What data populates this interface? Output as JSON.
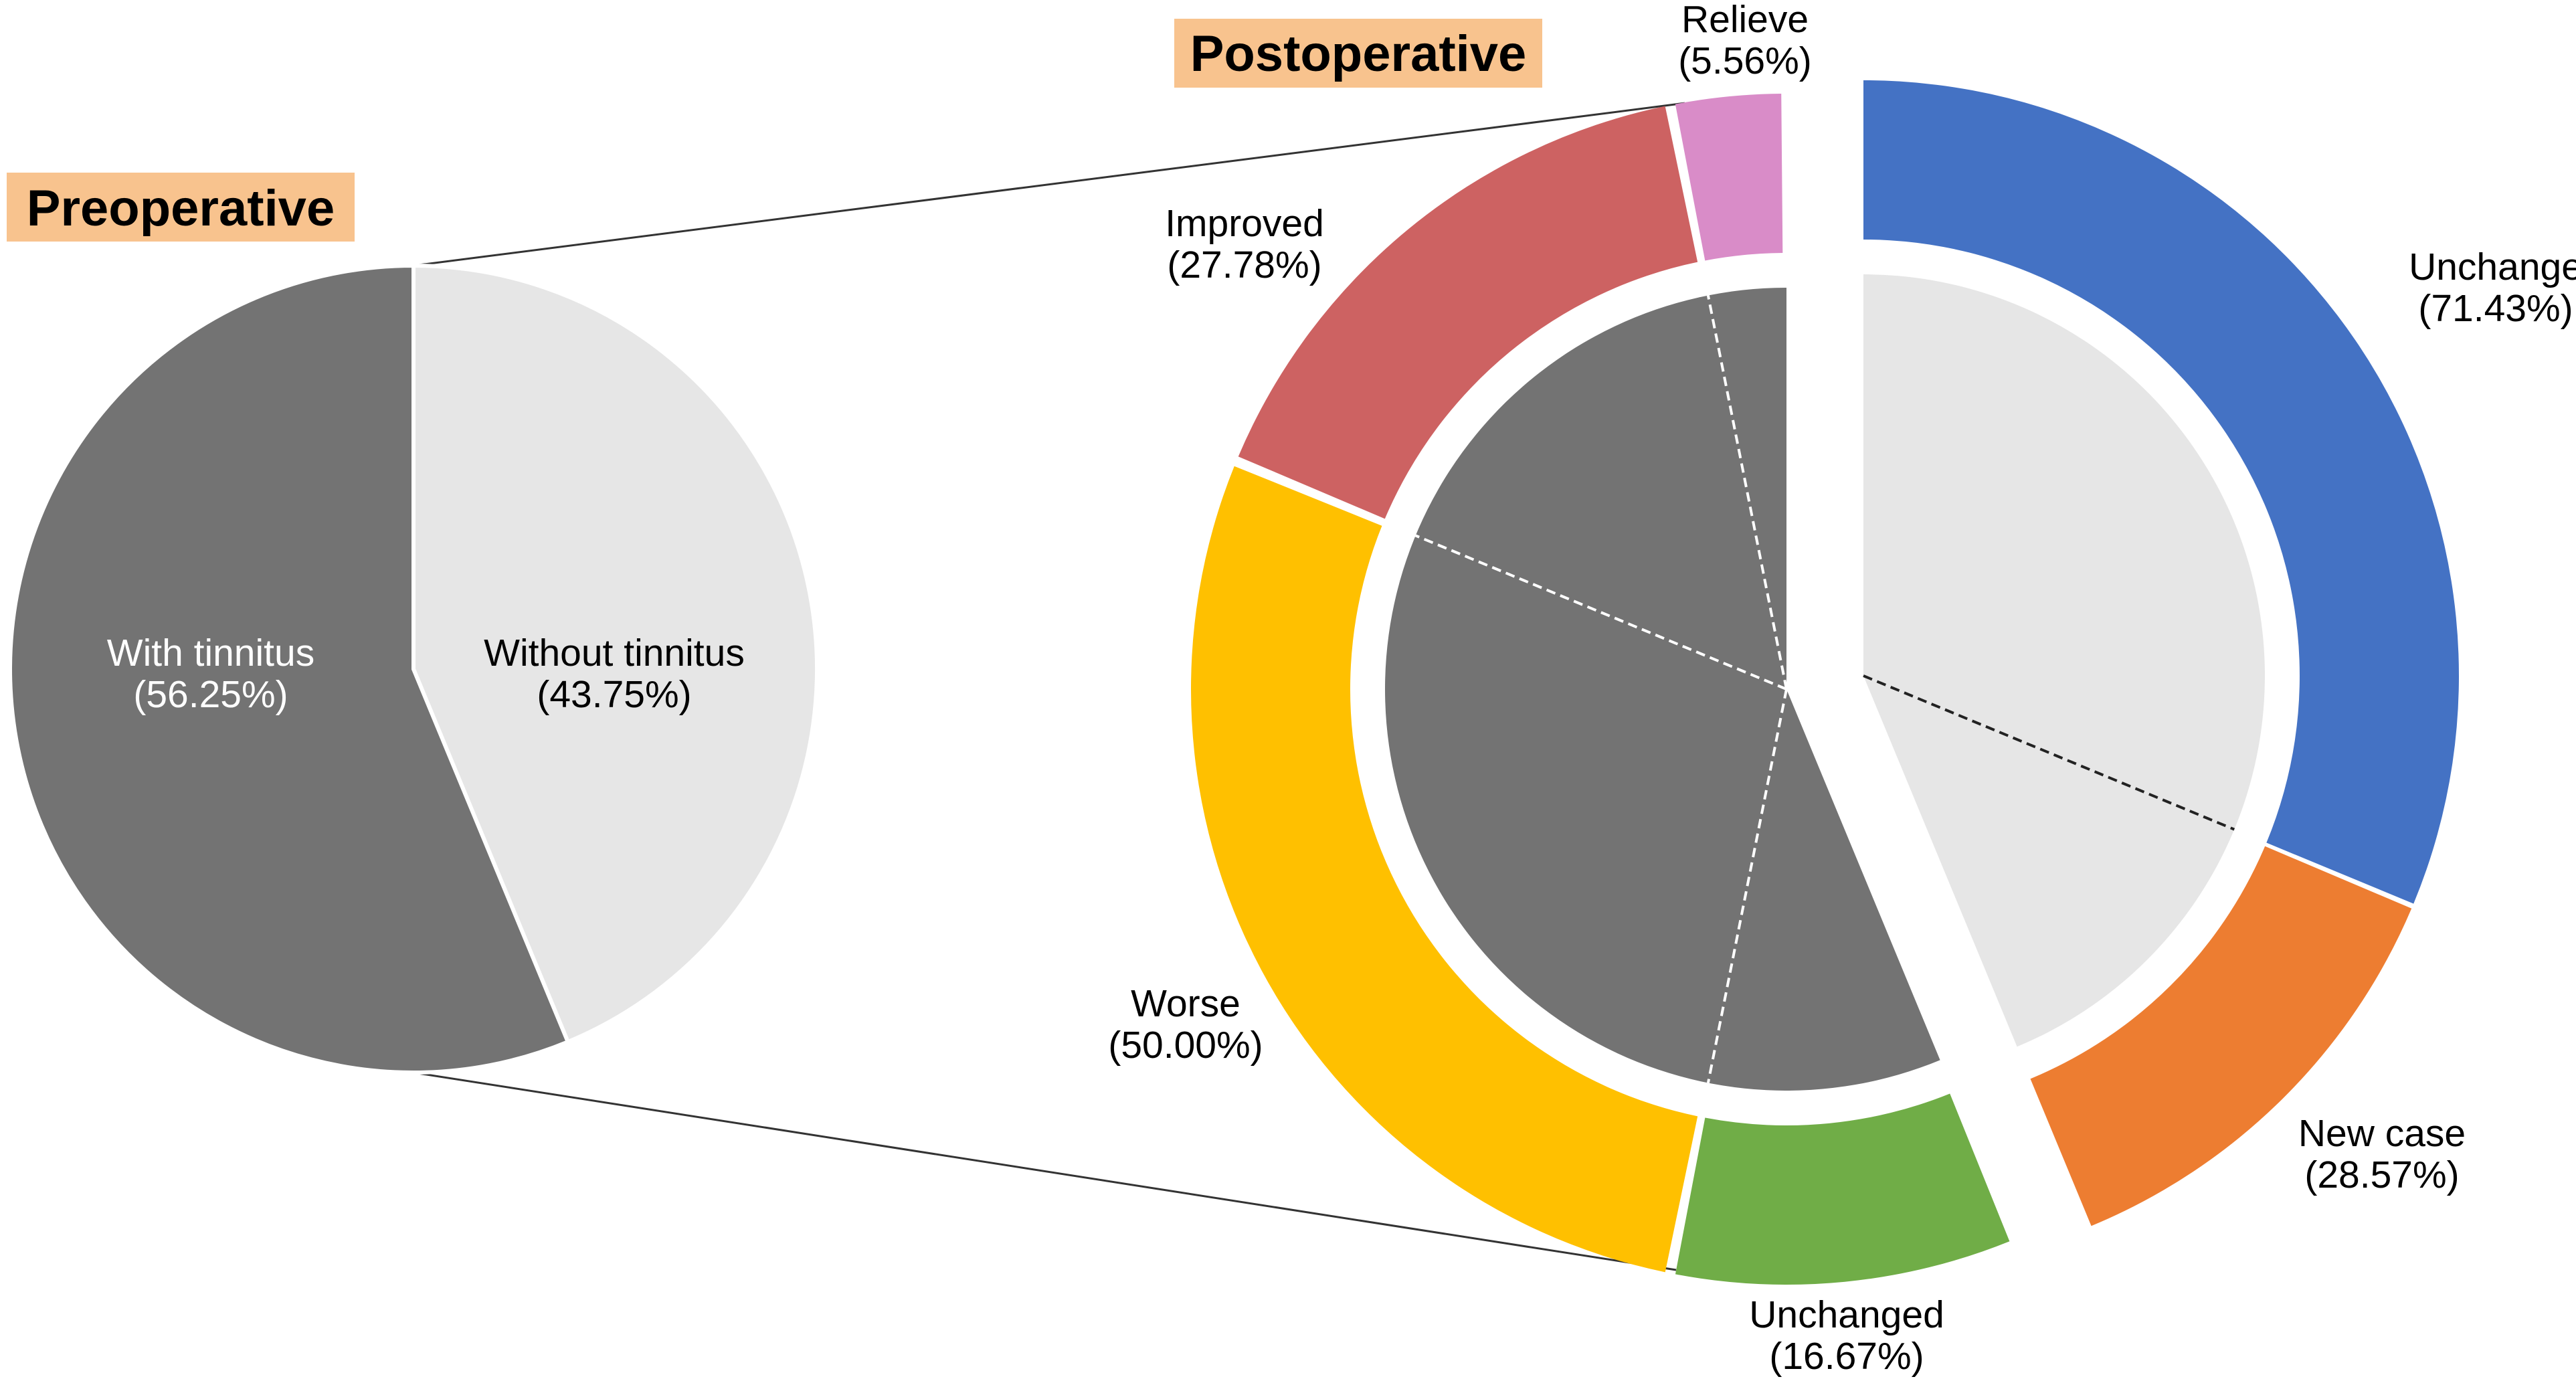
{
  "chart_data": [
    {
      "type": "pie",
      "title": "Preoperative",
      "slices": [
        {
          "label": "With tinnitus",
          "pct_label": "(56.25%)",
          "value": 56.25,
          "color": "#737373"
        },
        {
          "label": "Without tinnitus",
          "pct_label": "(43.75%)",
          "value": 43.75,
          "color": "#e6e6e6"
        }
      ]
    },
    {
      "type": "pie",
      "title": "Postoperative",
      "inner": [
        {
          "group": "With tinnitus",
          "value": 56.25,
          "color": "#737373"
        },
        {
          "group": "Without tinnitus",
          "value": 43.75,
          "color": "#e6e6e6"
        }
      ],
      "outer": [
        {
          "label": "Unchange",
          "pct_label": "(71.43%)",
          "value": 71.43,
          "group": "Without tinnitus",
          "color": "#4472c4"
        },
        {
          "label": "New case",
          "pct_label": "(28.57%)",
          "value": 28.57,
          "group": "Without tinnitus",
          "color": "#ed7d31"
        },
        {
          "label": "Unchanged",
          "pct_label": "(16.67%)",
          "value": 16.67,
          "group": "With tinnitus",
          "color": "#70ad47"
        },
        {
          "label": "Worse",
          "pct_label": "(50.00%)",
          "value": 50.0,
          "group": "With tinnitus",
          "color": "#ffc000"
        },
        {
          "label": "Improved",
          "pct_label": "(27.78%)",
          "value": 27.78,
          "group": "With tinnitus",
          "color": "#cd6262"
        },
        {
          "label": "Relieve",
          "pct_label": "(5.56%)",
          "value": 5.56,
          "group": "With tinnitus",
          "color": "#d98cc8"
        }
      ]
    }
  ],
  "tag_color": "#f8c38e"
}
